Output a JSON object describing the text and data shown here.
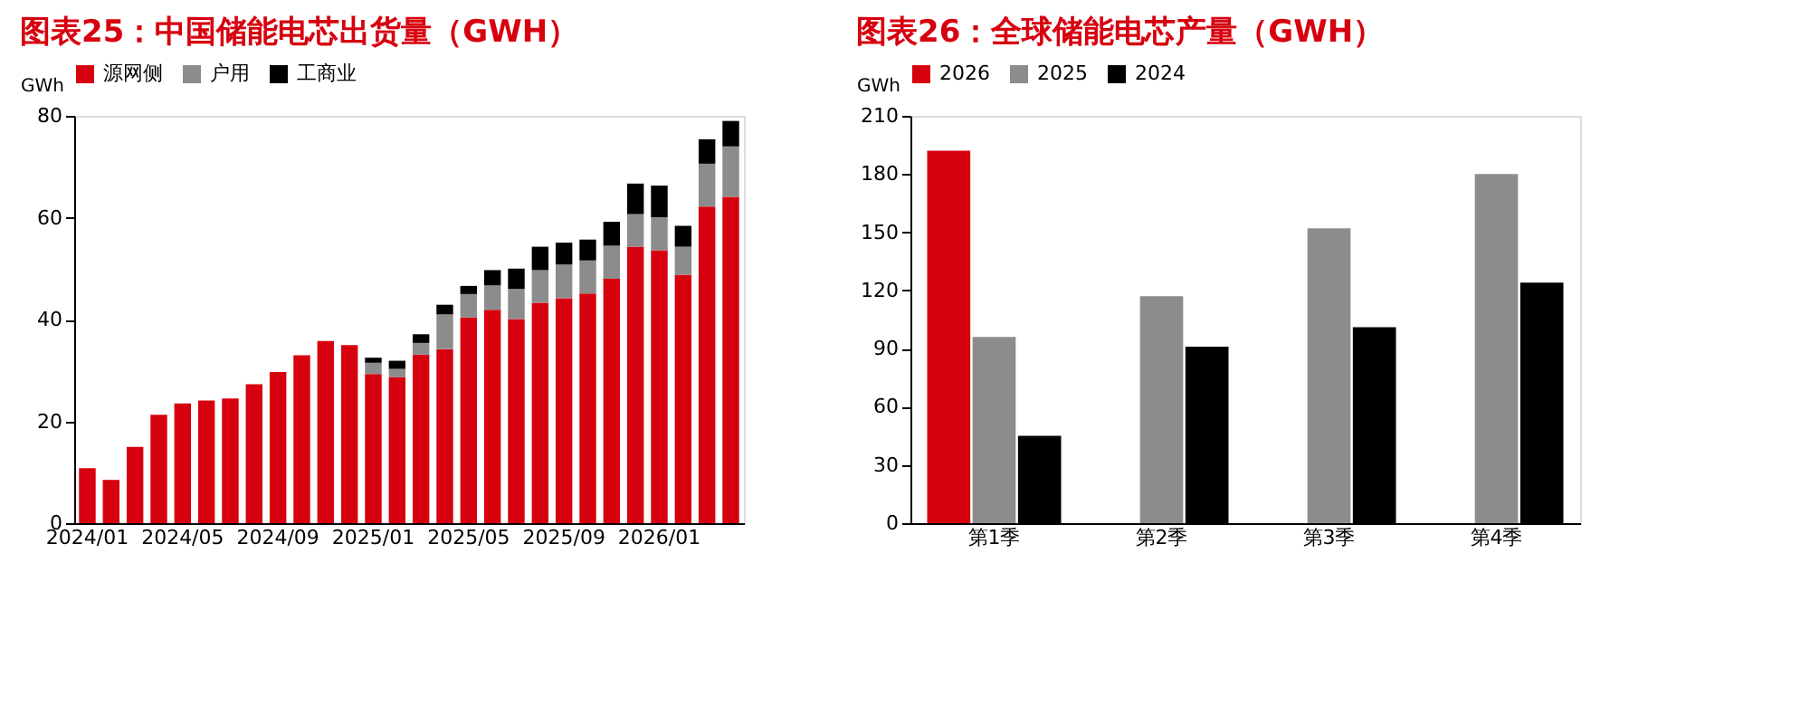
{
  "chart_data": [
    {
      "type": "bar",
      "title": "图表25：中国储能电芯出货量（GWH）",
      "ylabel": "GWh",
      "stacked": true,
      "legend": "top",
      "grid": false,
      "categories": [
        "2024/01",
        null,
        null,
        null,
        "2024/05",
        null,
        null,
        null,
        "2024/09",
        null,
        null,
        null,
        "2025/01",
        null,
        null,
        null,
        "2025/05",
        null,
        null,
        null,
        "2025/09",
        null,
        null,
        null,
        "2026/01",
        null,
        null,
        null
      ],
      "ylim": [
        0,
        80
      ],
      "yticks": [
        0,
        20,
        40,
        60,
        80
      ],
      "series": [
        {
          "name": "源网侧",
          "color": "#d7000f",
          "values": [
            10.8,
            8.5,
            15.0,
            21.3,
            23.5,
            24.1,
            24.5,
            27.3,
            29.7,
            33.0,
            35.8,
            35.0,
            29.3,
            28.7,
            33.1,
            34.2,
            40.4,
            41.9,
            40.1,
            43.3,
            44.2,
            45.1,
            48.0,
            54.3,
            53.6,
            48.8,
            62.2,
            64.1
          ]
        },
        {
          "name": "户用",
          "color": "#8c8c8c",
          "values": [
            null,
            null,
            null,
            null,
            null,
            null,
            null,
            null,
            null,
            null,
            null,
            null,
            2.2,
            1.6,
            2.3,
            6.8,
            4.6,
            4.8,
            5.9,
            6.4,
            6.6,
            6.5,
            6.5,
            6.4,
            6.5,
            5.5,
            8.4,
            9.9
          ]
        },
        {
          "name": "工商业",
          "color": "#000000",
          "values": [
            null,
            null,
            null,
            null,
            null,
            null,
            null,
            null,
            null,
            null,
            null,
            null,
            1.0,
            1.6,
            1.7,
            1.9,
            1.6,
            3.0,
            4.0,
            4.6,
            4.3,
            4.1,
            4.7,
            6.0,
            6.2,
            4.1,
            4.8,
            5.0
          ]
        }
      ]
    },
    {
      "type": "bar",
      "title": "图表26：全球储能电芯产量（GWH）",
      "ylabel": "GWh",
      "legend": "top",
      "grid": false,
      "categories": [
        "第1季",
        "第2季",
        "第3季",
        "第4季"
      ],
      "ylim": [
        0,
        210
      ],
      "yticks": [
        0,
        30,
        60,
        90,
        120,
        150,
        180,
        210
      ],
      "series": [
        {
          "name": "2026",
          "color": "#d7000f",
          "values": [
            192,
            null,
            null,
            null
          ]
        },
        {
          "name": "2025",
          "color": "#8c8c8c",
          "values": [
            96,
            117,
            152,
            180
          ]
        },
        {
          "name": "2024",
          "color": "#000000",
          "values": [
            45,
            91,
            101,
            124
          ]
        }
      ]
    }
  ]
}
